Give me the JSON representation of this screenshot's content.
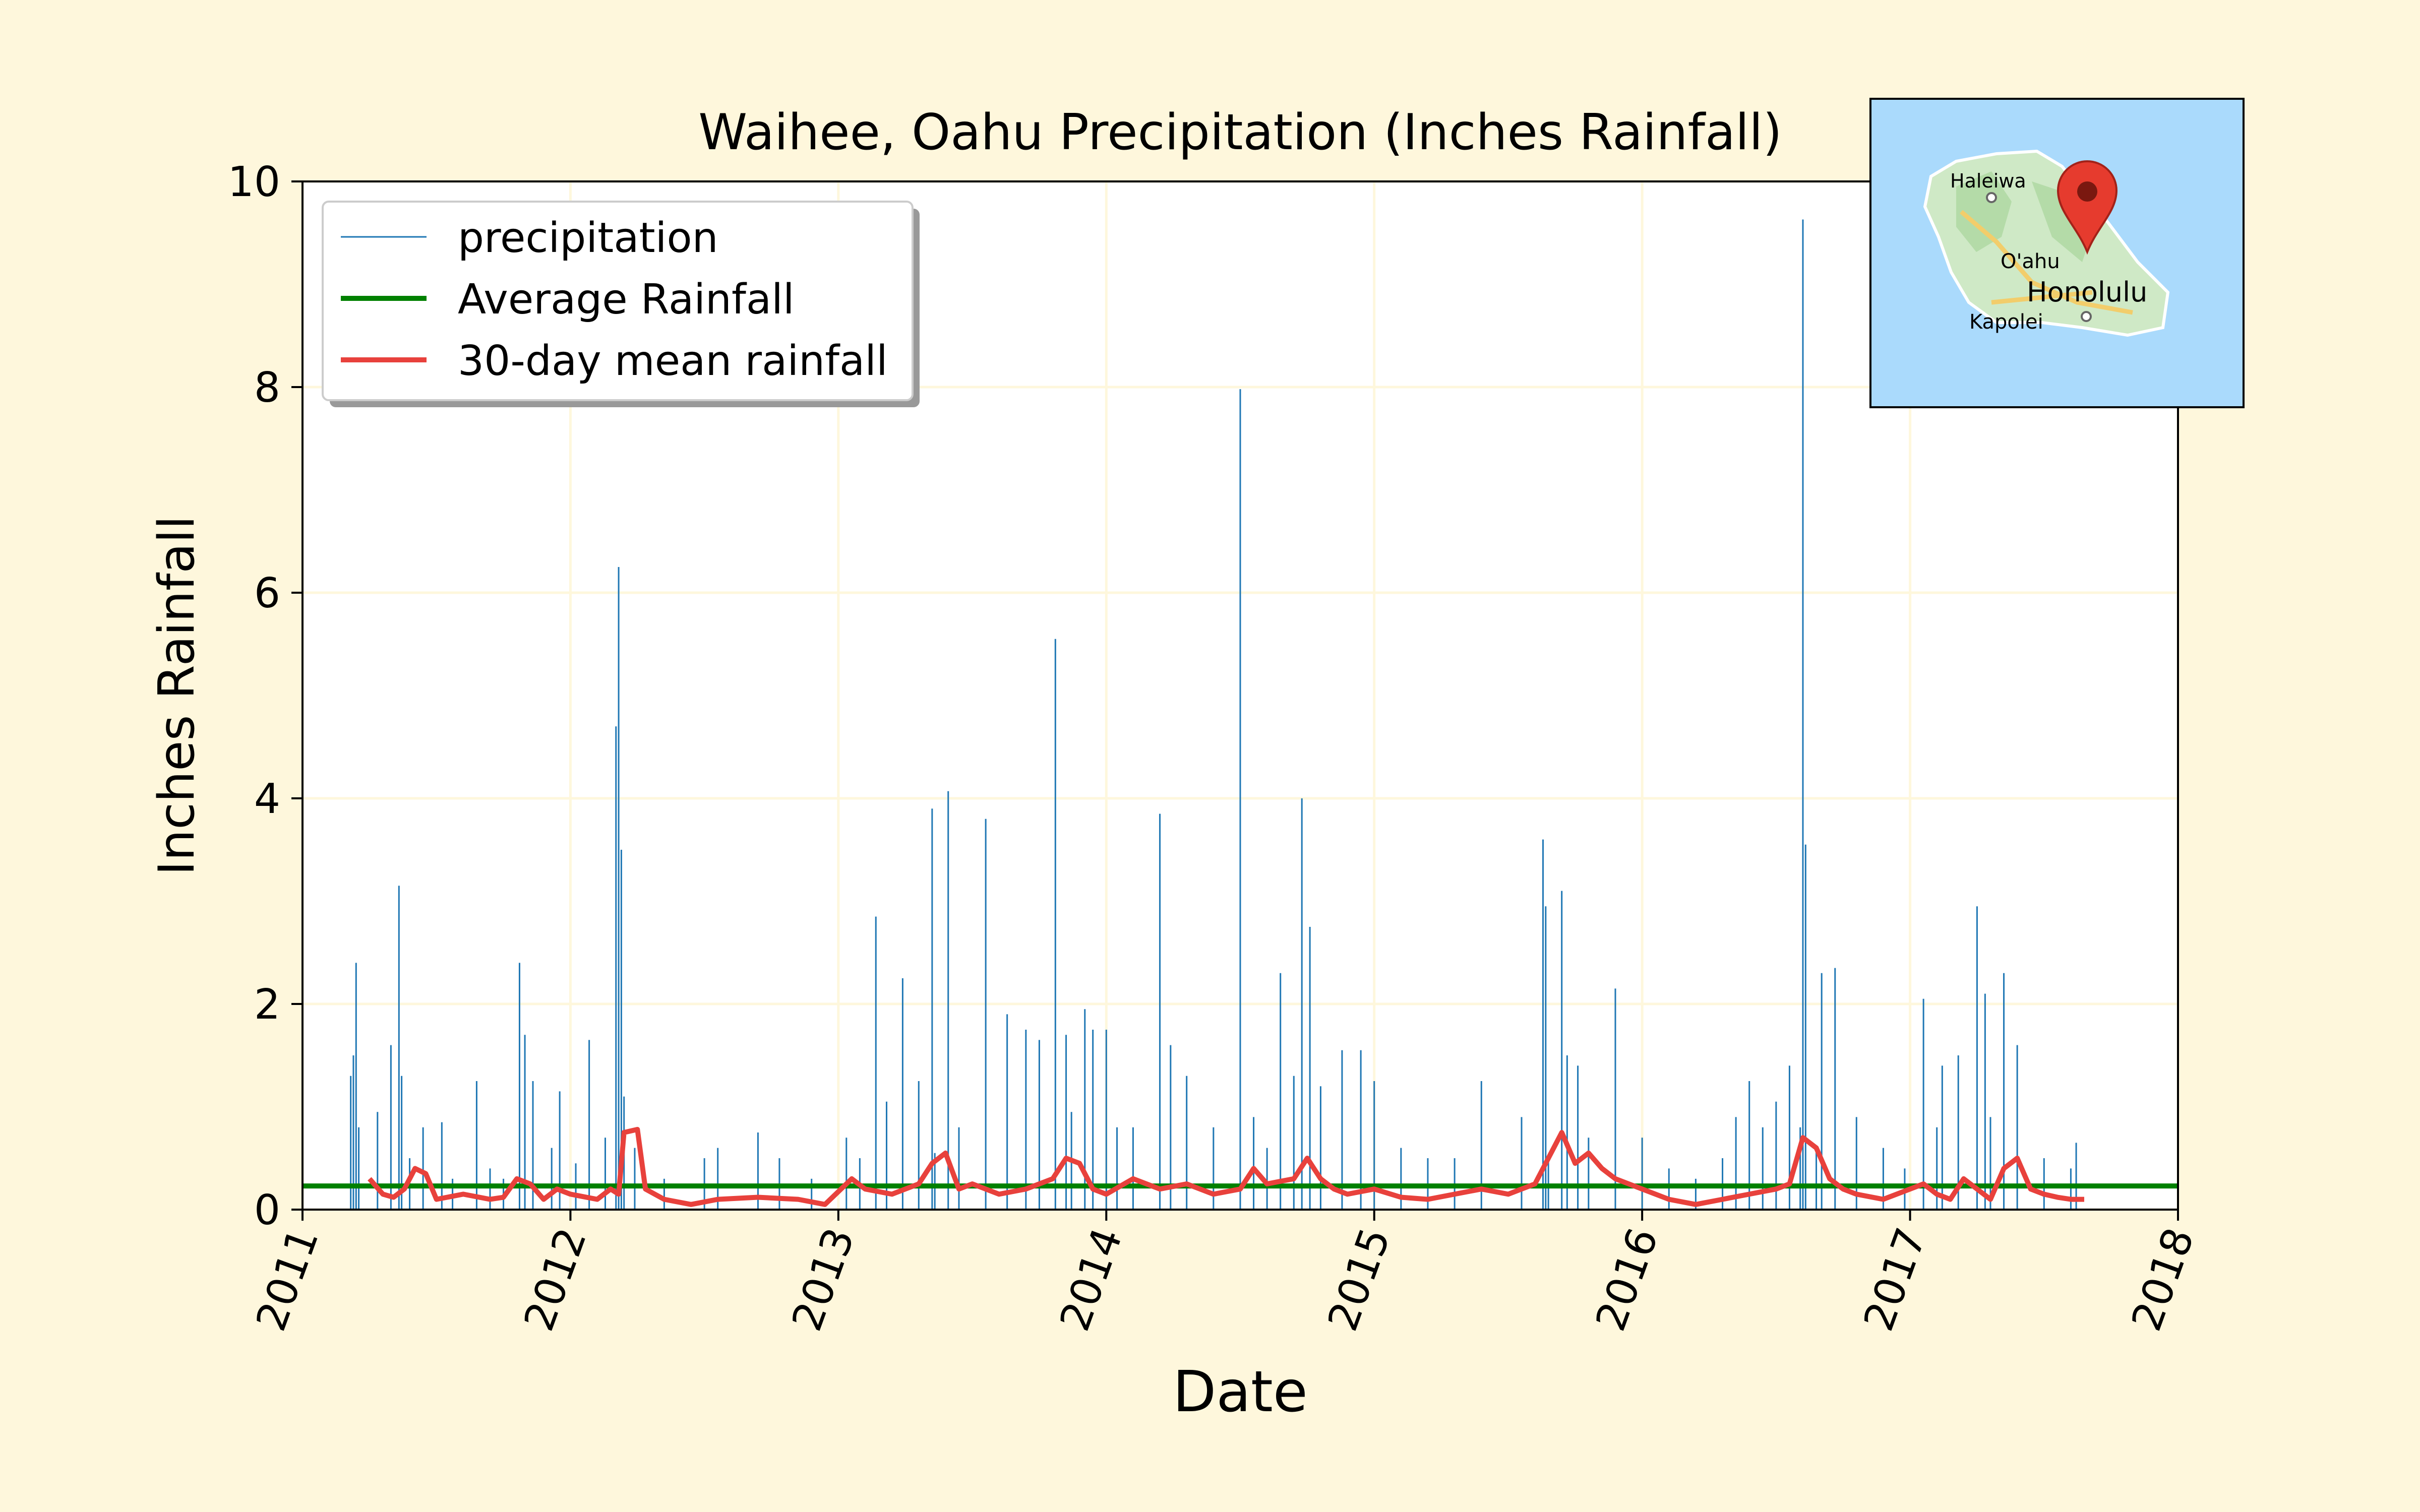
{
  "chart_data": {
    "type": "line",
    "title": "Waihee, Oahu Precipitation (Inches Rainfall)",
    "xlabel": "Date",
    "ylabel": "Inches Rainfall",
    "xlim": [
      2011,
      2018
    ],
    "ylim": [
      0,
      10
    ],
    "x_ticks": [
      "2011",
      "2012",
      "2013",
      "2014",
      "2015",
      "2016",
      "2017",
      "2018"
    ],
    "y_ticks": [
      "0",
      "2",
      "4",
      "6",
      "8",
      "10"
    ],
    "grid": true,
    "legend_position": "top-left",
    "legend": [
      "precipitation",
      "Average Rainfall",
      "30-day mean rainfall"
    ],
    "colors": {
      "precipitation": "#1f77b4",
      "average": "#008000",
      "rolling": "#e8413c",
      "background": "#fef7dc",
      "grid": "#fef7dc"
    },
    "average_rainfall": 0.23,
    "series": [
      {
        "name": "precipitation",
        "x": [
          2011.18,
          2011.19,
          2011.2,
          2011.21,
          2011.28,
          2011.33,
          2011.36,
          2011.37,
          2011.4,
          2011.45,
          2011.52,
          2011.56,
          2011.65,
          2011.7,
          2011.75,
          2011.81,
          2011.83,
          2011.86,
          2011.93,
          2011.96,
          2012.02,
          2012.07,
          2012.13,
          2012.17,
          2012.18,
          2012.19,
          2012.2,
          2012.24,
          2012.35,
          2012.5,
          2012.55,
          2012.7,
          2012.78,
          2012.9,
          2013.03,
          2013.08,
          2013.14,
          2013.18,
          2013.24,
          2013.3,
          2013.35,
          2013.36,
          2013.41,
          2013.45,
          2013.55,
          2013.63,
          2013.7,
          2013.75,
          2013.81,
          2013.85,
          2013.87,
          2013.92,
          2013.95,
          2014.0,
          2014.04,
          2014.1,
          2014.2,
          2014.24,
          2014.3,
          2014.4,
          2014.5,
          2014.55,
          2014.6,
          2014.65,
          2014.7,
          2014.73,
          2014.76,
          2014.8,
          2014.88,
          2014.95,
          2015.0,
          2015.1,
          2015.2,
          2015.3,
          2015.4,
          2015.55,
          2015.63,
          2015.64,
          2015.65,
          2015.7,
          2015.72,
          2015.76,
          2015.8,
          2015.9,
          2016.0,
          2016.1,
          2016.2,
          2016.3,
          2016.35,
          2016.4,
          2016.45,
          2016.5,
          2016.55,
          2016.59,
          2016.6,
          2016.61,
          2016.65,
          2016.67,
          2016.72,
          2016.8,
          2016.9,
          2016.98,
          2017.05,
          2017.1,
          2017.12,
          2017.18,
          2017.25,
          2017.28,
          2017.3,
          2017.35,
          2017.4,
          2017.5,
          2017.6,
          2017.62
        ],
        "values": [
          1.3,
          1.5,
          2.4,
          0.8,
          0.95,
          1.6,
          3.15,
          1.3,
          0.5,
          0.8,
          0.85,
          0.3,
          1.25,
          0.4,
          0.3,
          2.4,
          1.7,
          1.25,
          0.6,
          1.15,
          0.45,
          1.65,
          0.7,
          4.7,
          6.25,
          3.5,
          1.1,
          0.6,
          0.3,
          0.5,
          0.6,
          0.75,
          0.5,
          0.3,
          0.7,
          0.5,
          2.85,
          1.05,
          2.25,
          1.25,
          3.9,
          0.55,
          4.07,
          0.8,
          3.8,
          1.9,
          1.75,
          1.65,
          5.55,
          1.7,
          0.95,
          1.95,
          1.75,
          1.75,
          0.8,
          0.8,
          3.85,
          1.6,
          1.3,
          0.8,
          7.98,
          0.9,
          0.6,
          2.3,
          1.3,
          4.0,
          2.75,
          1.2,
          1.55,
          1.55,
          1.25,
          0.6,
          0.5,
          0.5,
          1.25,
          0.9,
          3.6,
          2.95,
          0.5,
          3.1,
          1.5,
          1.4,
          0.7,
          2.15,
          0.7,
          0.4,
          0.3,
          0.5,
          0.9,
          1.25,
          0.8,
          1.05,
          1.4,
          0.8,
          9.63,
          3.55,
          0.6,
          2.3,
          2.35,
          0.9,
          0.6,
          0.4,
          2.05,
          0.8,
          1.4,
          1.5,
          2.95,
          2.1,
          0.9,
          2.3,
          1.6,
          0.5,
          0.4,
          0.65
        ]
      },
      {
        "name": "30-day mean rainfall",
        "x": [
          2011.25,
          2011.3,
          2011.34,
          2011.38,
          2011.42,
          2011.46,
          2011.5,
          2011.6,
          2011.7,
          2011.75,
          2011.8,
          2011.85,
          2011.9,
          2011.95,
          2012.0,
          2012.1,
          2012.15,
          2012.18,
          2012.2,
          2012.25,
          2012.28,
          2012.35,
          2012.45,
          2012.55,
          2012.7,
          2012.85,
          2012.95,
          2013.05,
          2013.1,
          2013.2,
          2013.3,
          2013.35,
          2013.4,
          2013.45,
          2013.5,
          2013.6,
          2013.7,
          2013.8,
          2013.85,
          2013.9,
          2013.95,
          2014.0,
          2014.1,
          2014.2,
          2014.3,
          2014.4,
          2014.5,
          2014.55,
          2014.6,
          2014.7,
          2014.75,
          2014.8,
          2014.85,
          2014.9,
          2015.0,
          2015.1,
          2015.2,
          2015.3,
          2015.4,
          2015.5,
          2015.6,
          2015.65,
          2015.7,
          2015.75,
          2015.8,
          2015.85,
          2015.9,
          2015.95,
          2016.0,
          2016.1,
          2016.2,
          2016.3,
          2016.4,
          2016.5,
          2016.55,
          2016.6,
          2016.65,
          2016.7,
          2016.75,
          2016.8,
          2016.9,
          2017.0,
          2017.05,
          2017.1,
          2017.15,
          2017.2,
          2017.25,
          2017.3,
          2017.35,
          2017.4,
          2017.45,
          2017.5,
          2017.55,
          2017.6,
          2017.65
        ],
        "values": [
          0.3,
          0.15,
          0.12,
          0.2,
          0.4,
          0.35,
          0.1,
          0.15,
          0.1,
          0.12,
          0.3,
          0.25,
          0.1,
          0.2,
          0.15,
          0.1,
          0.2,
          0.15,
          0.75,
          0.78,
          0.2,
          0.1,
          0.05,
          0.1,
          0.12,
          0.1,
          0.05,
          0.3,
          0.2,
          0.15,
          0.25,
          0.45,
          0.55,
          0.2,
          0.25,
          0.15,
          0.2,
          0.3,
          0.5,
          0.45,
          0.2,
          0.15,
          0.3,
          0.2,
          0.25,
          0.15,
          0.2,
          0.4,
          0.25,
          0.3,
          0.5,
          0.3,
          0.2,
          0.15,
          0.2,
          0.12,
          0.1,
          0.15,
          0.2,
          0.15,
          0.25,
          0.5,
          0.75,
          0.45,
          0.55,
          0.4,
          0.3,
          0.25,
          0.2,
          0.1,
          0.05,
          0.1,
          0.15,
          0.2,
          0.25,
          0.7,
          0.6,
          0.3,
          0.2,
          0.15,
          0.1,
          0.2,
          0.25,
          0.15,
          0.1,
          0.3,
          0.2,
          0.1,
          0.4,
          0.5,
          0.2,
          0.15,
          0.12,
          0.1,
          0.1
        ]
      }
    ],
    "inset": {
      "labels": [
        "Haleiwa",
        "O'ahu",
        "Honolulu",
        "Kapolei"
      ]
    }
  }
}
